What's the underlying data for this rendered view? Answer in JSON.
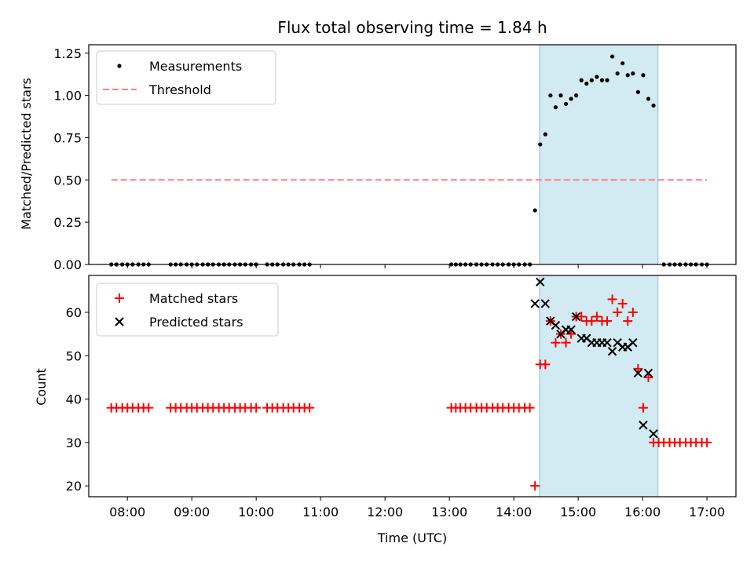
{
  "chart_data": {
    "type": "scatter",
    "title": "Flux total observing time = 1.84 h",
    "xlabel": "Time (UTC)",
    "xlim": [
      7.4,
      17.45
    ],
    "xticks": [
      8,
      9,
      10,
      11,
      12,
      13,
      14,
      15,
      16,
      17
    ],
    "xtick_labels": [
      "08:00",
      "09:00",
      "10:00",
      "11:00",
      "12:00",
      "13:00",
      "14:00",
      "15:00",
      "16:00",
      "17:00"
    ],
    "observing_window": [
      14.4,
      16.24
    ],
    "top_panel": {
      "ylabel": "Matched/Predicted stars",
      "ylim": [
        0,
        1.3
      ],
      "yticks": [
        0,
        0.25,
        0.5,
        0.75,
        1.0,
        1.25
      ],
      "ytick_labels": [
        "0.00",
        "0.25",
        "0.50",
        "0.75",
        "1.00",
        "1.25"
      ],
      "legend": [
        "Measurements",
        "Threshold"
      ],
      "threshold": {
        "value": 0.5,
        "x_range": [
          7.75,
          17.0
        ],
        "color": "#ff7f7f"
      },
      "measurements": [
        [
          7.75,
          0
        ],
        [
          7.83,
          0
        ],
        [
          7.92,
          0
        ],
        [
          8.0,
          0
        ],
        [
          8.08,
          0
        ],
        [
          8.17,
          0
        ],
        [
          8.25,
          0
        ],
        [
          8.33,
          0
        ],
        [
          8.67,
          0
        ],
        [
          8.75,
          0
        ],
        [
          8.83,
          0
        ],
        [
          8.92,
          0
        ],
        [
          9.0,
          0
        ],
        [
          9.08,
          0
        ],
        [
          9.17,
          0
        ],
        [
          9.25,
          0
        ],
        [
          9.33,
          0
        ],
        [
          9.42,
          0
        ],
        [
          9.5,
          0
        ],
        [
          9.58,
          0
        ],
        [
          9.67,
          0
        ],
        [
          9.75,
          0
        ],
        [
          9.83,
          0
        ],
        [
          9.92,
          0
        ],
        [
          10.0,
          0
        ],
        [
          10.17,
          0
        ],
        [
          10.25,
          0
        ],
        [
          10.33,
          0
        ],
        [
          10.42,
          0
        ],
        [
          10.5,
          0
        ],
        [
          10.58,
          0
        ],
        [
          10.67,
          0
        ],
        [
          10.75,
          0
        ],
        [
          10.83,
          0
        ],
        [
          13.03,
          0
        ],
        [
          13.1,
          0
        ],
        [
          13.17,
          0
        ],
        [
          13.25,
          0
        ],
        [
          13.33,
          0
        ],
        [
          13.42,
          0
        ],
        [
          13.5,
          0
        ],
        [
          13.58,
          0
        ],
        [
          13.67,
          0
        ],
        [
          13.75,
          0
        ],
        [
          13.83,
          0
        ],
        [
          13.92,
          0
        ],
        [
          14.0,
          0
        ],
        [
          14.08,
          0
        ],
        [
          14.17,
          0
        ],
        [
          14.25,
          0
        ],
        [
          14.33,
          0.32
        ],
        [
          14.41,
          0.71
        ],
        [
          14.49,
          0.77
        ],
        [
          14.57,
          1.0
        ],
        [
          14.65,
          0.93
        ],
        [
          14.73,
          1.0
        ],
        [
          14.81,
          0.95
        ],
        [
          14.89,
          0.98
        ],
        [
          14.97,
          1.0
        ],
        [
          15.05,
          1.09
        ],
        [
          15.13,
          1.07
        ],
        [
          15.21,
          1.09
        ],
        [
          15.29,
          1.11
        ],
        [
          15.37,
          1.09
        ],
        [
          15.45,
          1.09
        ],
        [
          15.53,
          1.23
        ],
        [
          15.61,
          1.13
        ],
        [
          15.69,
          1.19
        ],
        [
          15.77,
          1.12
        ],
        [
          15.85,
          1.13
        ],
        [
          15.93,
          1.02
        ],
        [
          16.01,
          1.12
        ],
        [
          16.09,
          0.98
        ],
        [
          16.17,
          0.94
        ],
        [
          16.33,
          0
        ],
        [
          16.42,
          0
        ],
        [
          16.5,
          0
        ],
        [
          16.58,
          0
        ],
        [
          16.67,
          0
        ],
        [
          16.75,
          0
        ],
        [
          16.83,
          0
        ],
        [
          16.92,
          0
        ],
        [
          17.0,
          0
        ]
      ]
    },
    "bottom_panel": {
      "ylabel": "Count",
      "ylim": [
        17.5,
        68.5
      ],
      "yticks": [
        20,
        30,
        40,
        50,
        60
      ],
      "ytick_labels": [
        "20",
        "30",
        "40",
        "50",
        "60"
      ],
      "legend": [
        "Matched stars",
        "Predicted stars"
      ],
      "matched": [
        [
          7.75,
          38
        ],
        [
          7.83,
          38
        ],
        [
          7.92,
          38
        ],
        [
          8.0,
          38
        ],
        [
          8.08,
          38
        ],
        [
          8.17,
          38
        ],
        [
          8.25,
          38
        ],
        [
          8.33,
          38
        ],
        [
          8.67,
          38
        ],
        [
          8.75,
          38
        ],
        [
          8.83,
          38
        ],
        [
          8.92,
          38
        ],
        [
          9.0,
          38
        ],
        [
          9.08,
          38
        ],
        [
          9.17,
          38
        ],
        [
          9.25,
          38
        ],
        [
          9.33,
          38
        ],
        [
          9.42,
          38
        ],
        [
          9.5,
          38
        ],
        [
          9.58,
          38
        ],
        [
          9.67,
          38
        ],
        [
          9.75,
          38
        ],
        [
          9.83,
          38
        ],
        [
          9.92,
          38
        ],
        [
          10.0,
          38
        ],
        [
          10.17,
          38
        ],
        [
          10.25,
          38
        ],
        [
          10.33,
          38
        ],
        [
          10.42,
          38
        ],
        [
          10.5,
          38
        ],
        [
          10.58,
          38
        ],
        [
          10.67,
          38
        ],
        [
          10.75,
          38
        ],
        [
          10.83,
          38
        ],
        [
          13.03,
          38
        ],
        [
          13.1,
          38
        ],
        [
          13.17,
          38
        ],
        [
          13.25,
          38
        ],
        [
          13.33,
          38
        ],
        [
          13.42,
          38
        ],
        [
          13.5,
          38
        ],
        [
          13.58,
          38
        ],
        [
          13.67,
          38
        ],
        [
          13.75,
          38
        ],
        [
          13.83,
          38
        ],
        [
          13.92,
          38
        ],
        [
          14.0,
          38
        ],
        [
          14.08,
          38
        ],
        [
          14.17,
          38
        ],
        [
          14.25,
          38
        ],
        [
          14.33,
          20
        ],
        [
          14.41,
          48
        ],
        [
          14.49,
          48
        ],
        [
          14.57,
          58
        ],
        [
          14.65,
          53
        ],
        [
          14.73,
          55
        ],
        [
          14.81,
          53
        ],
        [
          14.89,
          55
        ],
        [
          14.97,
          59
        ],
        [
          15.05,
          59
        ],
        [
          15.13,
          58
        ],
        [
          15.21,
          58
        ],
        [
          15.29,
          59
        ],
        [
          15.37,
          58
        ],
        [
          15.45,
          58
        ],
        [
          15.53,
          63
        ],
        [
          15.61,
          60
        ],
        [
          15.69,
          62
        ],
        [
          15.77,
          58
        ],
        [
          15.85,
          60
        ],
        [
          15.93,
          47
        ],
        [
          16.01,
          38
        ],
        [
          16.09,
          45
        ],
        [
          16.17,
          30
        ],
        [
          16.25,
          30
        ],
        [
          16.33,
          30
        ],
        [
          16.42,
          30
        ],
        [
          16.5,
          30
        ],
        [
          16.58,
          30
        ],
        [
          16.67,
          30
        ],
        [
          16.75,
          30
        ],
        [
          16.83,
          30
        ],
        [
          16.92,
          30
        ],
        [
          17.0,
          30
        ]
      ],
      "predicted": [
        [
          14.33,
          62
        ],
        [
          14.41,
          67
        ],
        [
          14.49,
          62
        ],
        [
          14.57,
          58
        ],
        [
          14.65,
          57
        ],
        [
          14.73,
          55
        ],
        [
          14.81,
          56
        ],
        [
          14.89,
          56
        ],
        [
          14.97,
          59
        ],
        [
          15.05,
          54
        ],
        [
          15.13,
          54
        ],
        [
          15.21,
          53
        ],
        [
          15.29,
          53
        ],
        [
          15.37,
          53
        ],
        [
          15.45,
          53
        ],
        [
          15.53,
          51
        ],
        [
          15.61,
          53
        ],
        [
          15.69,
          52
        ],
        [
          15.77,
          52
        ],
        [
          15.85,
          53
        ],
        [
          15.93,
          46
        ],
        [
          16.01,
          34
        ],
        [
          16.09,
          46
        ],
        [
          16.17,
          32
        ]
      ]
    },
    "colors": {
      "window": "#add8e6",
      "matched": "#ff0000",
      "predicted": "#000000",
      "measurement": "#000000",
      "threshold": "#ff7f7f"
    }
  }
}
